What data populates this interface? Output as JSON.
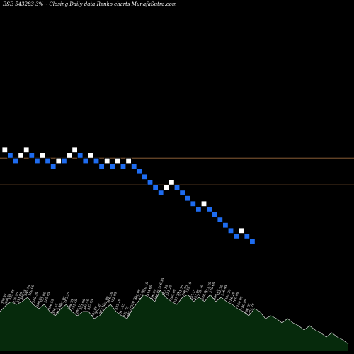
{
  "title": "BSE 543283 3%~  Closing Daily data  Renko  charts MunafaSutra.com",
  "colors": {
    "background": "#000000",
    "up_brick": "#ffffff",
    "down_brick": "#1e6cf0",
    "brick_border": "#000000",
    "ref_line": "#9b6a3c",
    "volume_fill": "#062a0c",
    "volume_line": "#e0e0e0",
    "label_text": "#ffffff"
  },
  "chart_data": {
    "type": "renko",
    "bricks": [
      {
        "level": 0,
        "dir": "up"
      },
      {
        "level": -1,
        "dir": "down"
      },
      {
        "level": -2,
        "dir": "down"
      },
      {
        "level": -1,
        "dir": "up"
      },
      {
        "level": 0,
        "dir": "up"
      },
      {
        "level": -1,
        "dir": "down"
      },
      {
        "level": -2,
        "dir": "down"
      },
      {
        "level": -1,
        "dir": "up"
      },
      {
        "level": -2,
        "dir": "down"
      },
      {
        "level": -3,
        "dir": "down"
      },
      {
        "level": -2,
        "dir": "up"
      },
      {
        "level": -2,
        "dir": "down"
      },
      {
        "level": -1,
        "dir": "up"
      },
      {
        "level": 0,
        "dir": "up"
      },
      {
        "level": -1,
        "dir": "down"
      },
      {
        "level": -2,
        "dir": "down"
      },
      {
        "level": -1,
        "dir": "up"
      },
      {
        "level": -2,
        "dir": "down"
      },
      {
        "level": -3,
        "dir": "down"
      },
      {
        "level": -2,
        "dir": "up"
      },
      {
        "level": -3,
        "dir": "down"
      },
      {
        "level": -2,
        "dir": "up"
      },
      {
        "level": -3,
        "dir": "down"
      },
      {
        "level": -2,
        "dir": "up"
      },
      {
        "level": -3,
        "dir": "down"
      },
      {
        "level": -4,
        "dir": "down"
      },
      {
        "level": -5,
        "dir": "down"
      },
      {
        "level": -6,
        "dir": "down"
      },
      {
        "level": -7,
        "dir": "down"
      },
      {
        "level": -8,
        "dir": "down"
      },
      {
        "level": -7,
        "dir": "up"
      },
      {
        "level": -6,
        "dir": "up"
      },
      {
        "level": -7,
        "dir": "down"
      },
      {
        "level": -8,
        "dir": "down"
      },
      {
        "level": -9,
        "dir": "down"
      },
      {
        "level": -10,
        "dir": "down"
      },
      {
        "level": -11,
        "dir": "down"
      },
      {
        "level": -10,
        "dir": "up"
      },
      {
        "level": -11,
        "dir": "down"
      },
      {
        "level": -12,
        "dir": "down"
      },
      {
        "level": -13,
        "dir": "down"
      },
      {
        "level": -14,
        "dir": "down"
      },
      {
        "level": -15,
        "dir": "down"
      },
      {
        "level": -16,
        "dir": "down"
      },
      {
        "level": -15,
        "dir": "up"
      },
      {
        "level": -16,
        "dir": "down"
      },
      {
        "level": -17,
        "dir": "down"
      }
    ],
    "reference_levels": [
      -1.5,
      -6.5
    ],
    "volume_area": [
      0.56,
      0.64,
      0.7,
      0.66,
      0.7,
      0.76,
      0.66,
      0.6,
      0.66,
      0.56,
      0.5,
      0.6,
      0.66,
      0.56,
      0.5,
      0.56,
      0.56,
      0.46,
      0.5,
      0.6,
      0.66,
      0.56,
      0.5,
      0.46,
      0.6,
      0.7,
      0.8,
      0.76,
      0.7,
      0.86,
      0.76,
      0.7,
      0.66,
      0.76,
      0.8,
      0.7,
      0.76,
      0.7,
      0.8,
      0.7,
      0.76,
      0.7,
      0.66,
      0.6,
      0.56,
      0.5,
      0.6,
      0.56,
      0.46,
      0.5,
      0.46,
      0.4,
      0.46,
      0.4,
      0.36,
      0.3,
      0.36,
      0.3,
      0.26,
      0.2,
      0.26,
      0.2,
      0.16,
      0.1
    ],
    "volume_labels": [
      "339.95",
      "350.05",
      "333.80",
      "279.95",
      "311.80",
      "306.55",
      "345.70",
      "280.00",
      "288.30",
      "300.50",
      "267.00",
      "285.05",
      "296.50",
      "336.65",
      "313.30",
      "307.05",
      "262.35",
      "308.35",
      "281.45",
      "285.15",
      "321.90",
      "307.50",
      "332.05",
      "353.80",
      "361.95",
      "373.15",
      "352.00",
      "366.30",
      "352.00",
      "333.10",
      "311.35",
      "332.75",
      "305.45",
      "320.25",
      "302.00",
      "313.00",
      "320.15",
      "314.60",
      "296.50",
      "309.85",
      "306.35",
      "287.10",
      "281.25",
      "265.00",
      "257.25",
      "271.75",
      "248.75",
      "233.10",
      "257.15",
      "233.00",
      "229.70",
      "248.65",
      "213.35",
      "228.60",
      "209.10",
      "221.35",
      "226.45",
      "205.20",
      "186.20",
      "160.00",
      "160.00",
      "180.90",
      "186.05",
      "174.70"
    ]
  }
}
